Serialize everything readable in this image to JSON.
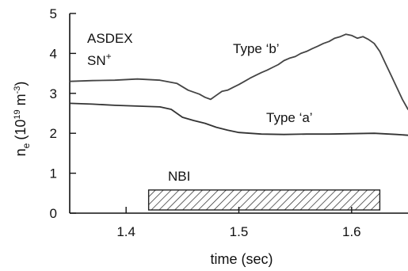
{
  "chart_data": {
    "type": "line",
    "xlabel": "time (sec)",
    "ylabel": "n̄e (10¹⁹ m⁻³)",
    "ylabel_parts": {
      "symbol": "n",
      "subscript": "e",
      "unit_open": "(10",
      "unit_exp": "19",
      "unit_mid": " m",
      "unit_exp2": "-3",
      "unit_close": ")"
    },
    "xlim": [
      1.35,
      1.65
    ],
    "ylim": [
      0,
      5
    ],
    "xticks": [
      1.4,
      1.5,
      1.6
    ],
    "xtick_labels": [
      "1.4",
      "1.5",
      "1.6"
    ],
    "yticks": [
      0,
      1,
      2,
      3,
      4,
      5
    ],
    "ytick_labels": [
      "0",
      "1",
      "2",
      "3",
      "4",
      "5"
    ],
    "grid": false,
    "colors": {
      "type_b": "#444444",
      "type_a": "#333333",
      "axis": "#111111",
      "nbi": "#222222"
    },
    "series": [
      {
        "name": "Type ‘b’",
        "x": [
          1.35,
          1.37,
          1.39,
          1.41,
          1.43,
          1.445,
          1.455,
          1.465,
          1.47,
          1.475,
          1.48,
          1.485,
          1.49,
          1.495,
          1.5,
          1.505,
          1.51,
          1.515,
          1.52,
          1.525,
          1.53,
          1.535,
          1.54,
          1.545,
          1.55,
          1.555,
          1.56,
          1.565,
          1.57,
          1.575,
          1.58,
          1.585,
          1.59,
          1.595,
          1.6,
          1.605,
          1.61,
          1.615,
          1.62,
          1.625,
          1.63,
          1.635,
          1.64,
          1.645,
          1.65
        ],
        "y": [
          3.3,
          3.32,
          3.33,
          3.36,
          3.33,
          3.25,
          3.08,
          2.98,
          2.9,
          2.85,
          2.95,
          3.05,
          3.08,
          3.15,
          3.22,
          3.3,
          3.38,
          3.45,
          3.52,
          3.58,
          3.65,
          3.72,
          3.82,
          3.88,
          3.92,
          4.0,
          4.05,
          4.12,
          4.18,
          4.25,
          4.3,
          4.38,
          4.42,
          4.48,
          4.45,
          4.38,
          4.42,
          4.35,
          4.25,
          4.05,
          3.75,
          3.45,
          3.15,
          2.85,
          2.6
        ]
      },
      {
        "name": "Type ‘a’",
        "x": [
          1.35,
          1.37,
          1.39,
          1.41,
          1.43,
          1.44,
          1.45,
          1.46,
          1.47,
          1.48,
          1.49,
          1.5,
          1.52,
          1.54,
          1.56,
          1.58,
          1.6,
          1.62,
          1.64,
          1.65
        ],
        "y": [
          2.75,
          2.73,
          2.7,
          2.68,
          2.66,
          2.6,
          2.4,
          2.32,
          2.25,
          2.15,
          2.08,
          2.02,
          1.98,
          1.97,
          1.98,
          1.98,
          1.99,
          2.0,
          1.97,
          1.95
        ]
      }
    ],
    "annotations": {
      "device": "ASDEX",
      "config": "SN",
      "config_sup": "+",
      "label_b": "Type ‘b’",
      "label_a": "Type ‘a’",
      "nbi_label": "NBI"
    },
    "nbi_bar": {
      "x_start": 1.42,
      "x_end": 1.625,
      "y_bottom": 0.08,
      "y_top": 0.58
    }
  }
}
